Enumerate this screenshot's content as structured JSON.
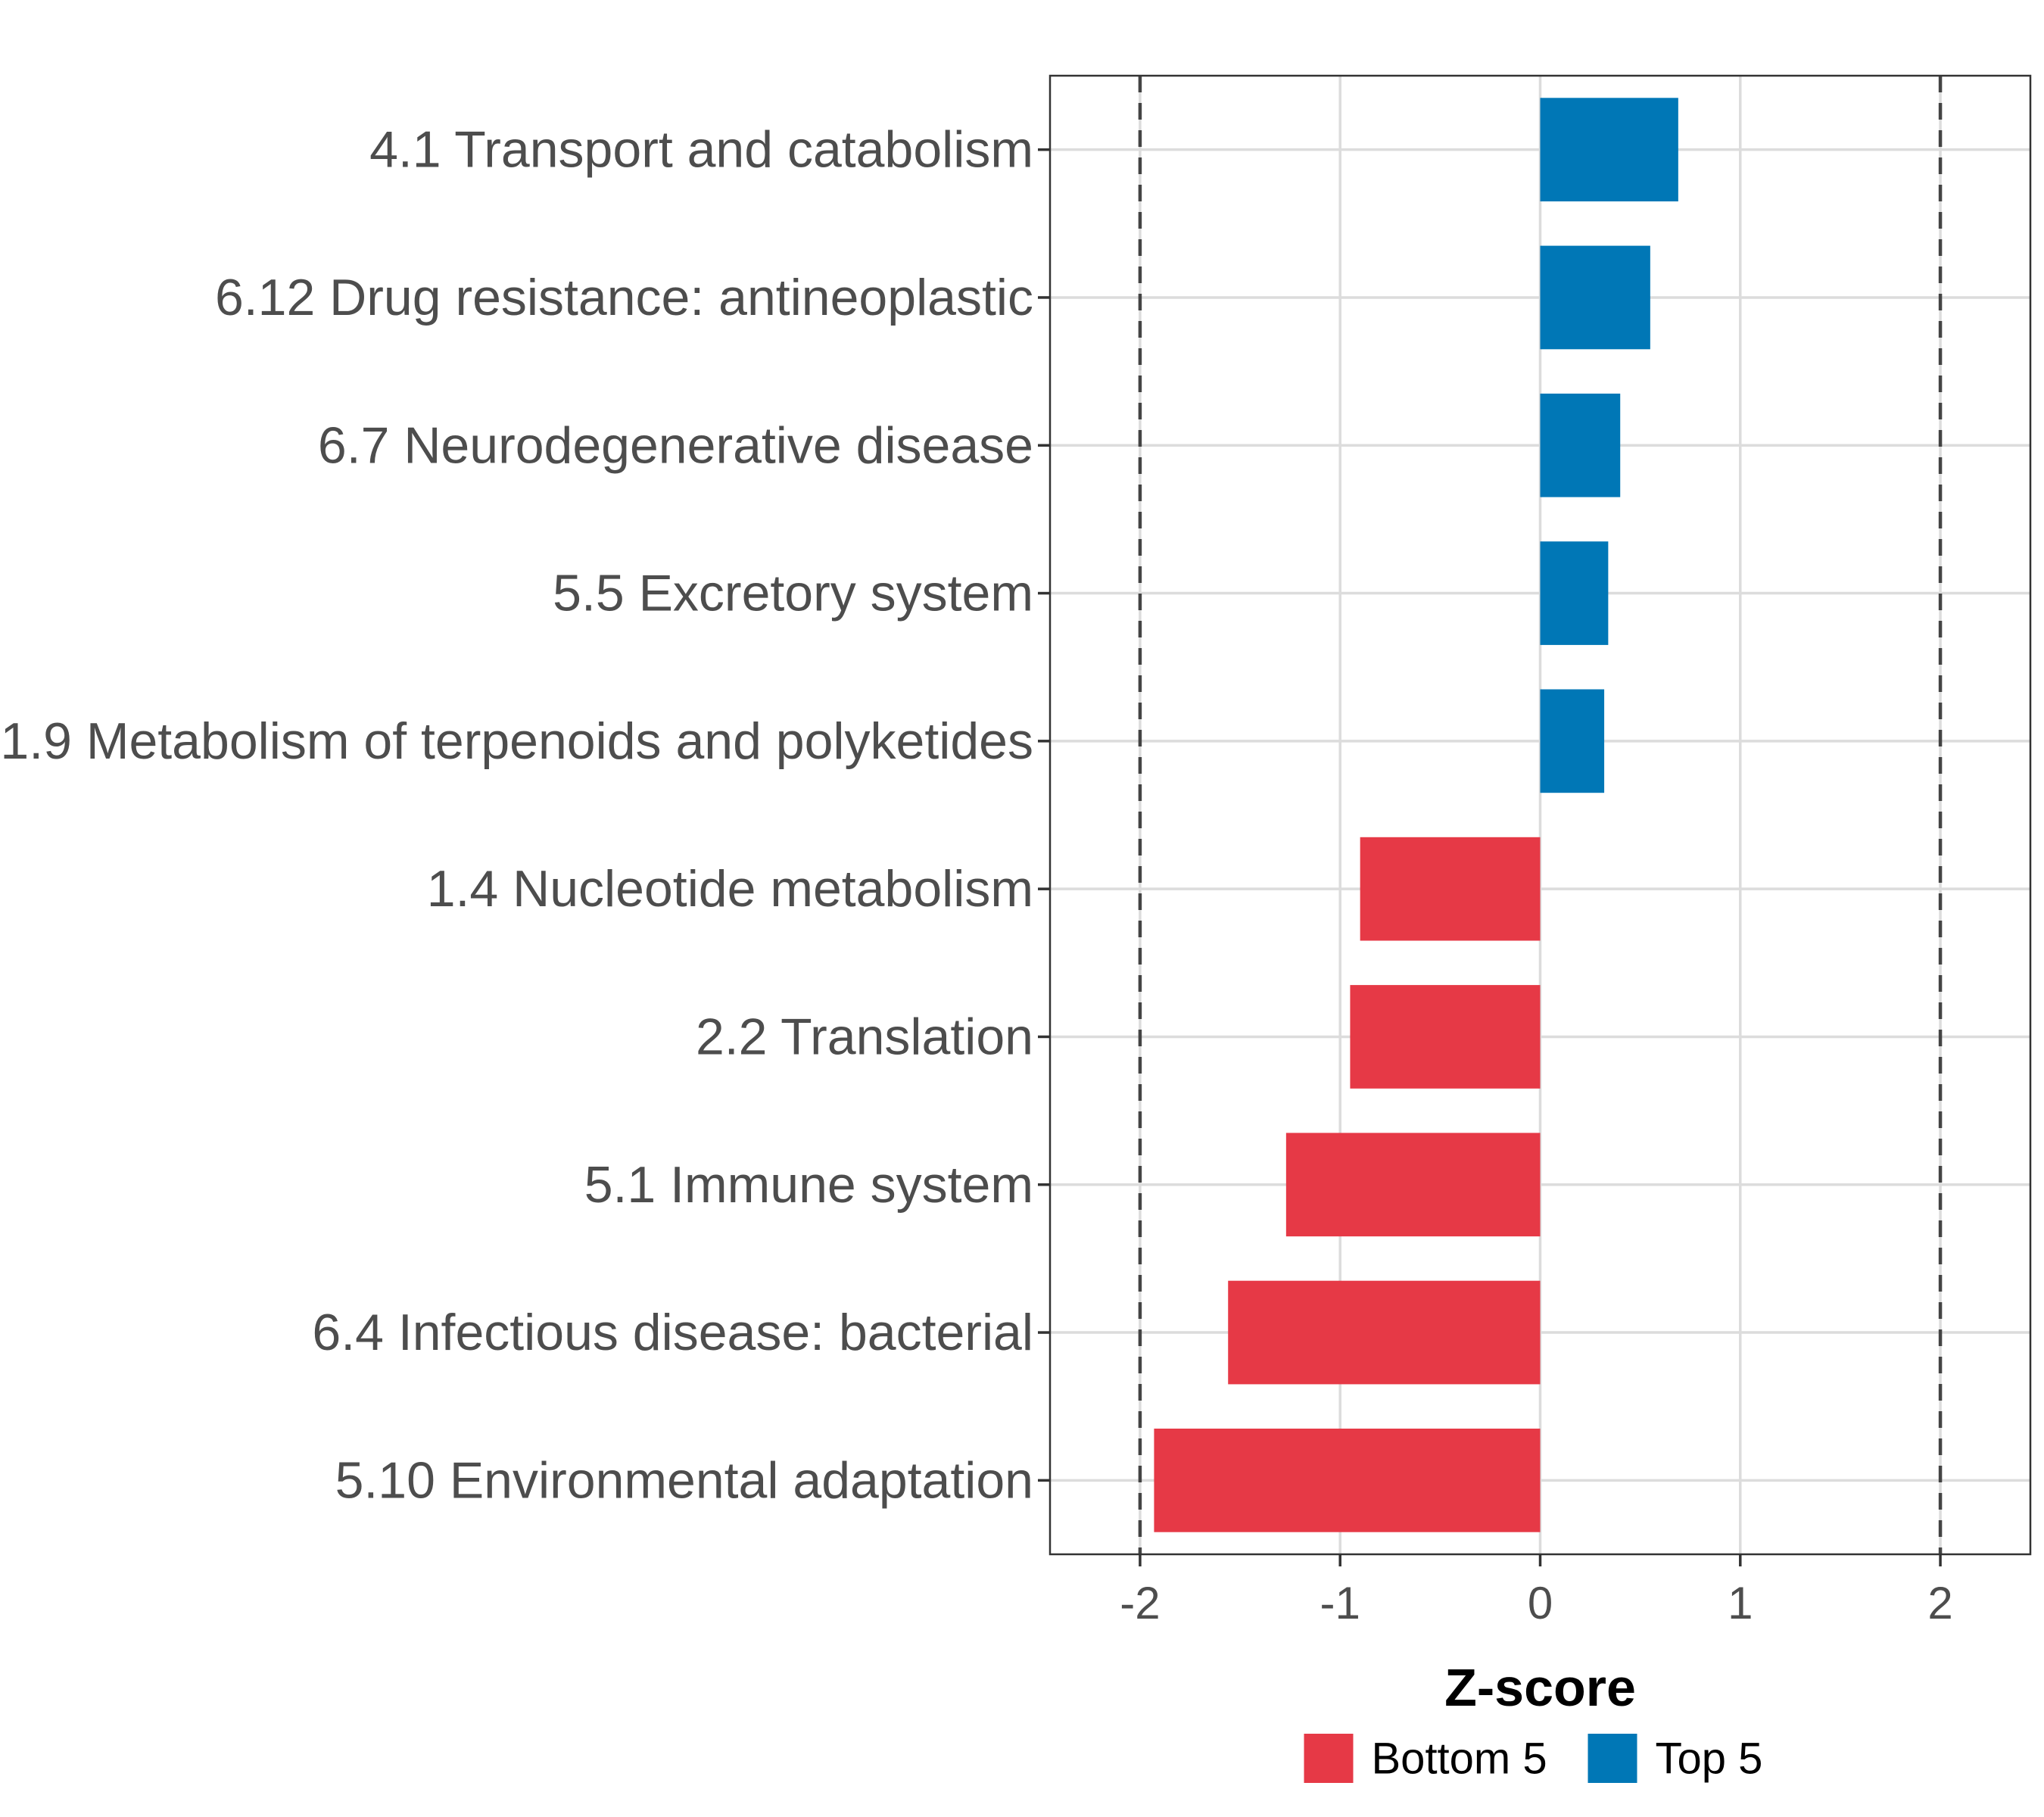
{
  "chart_data": {
    "type": "bar",
    "orientation": "horizontal",
    "title": "",
    "xlabel": "Z-score",
    "ylabel": "",
    "xlim": [
      -2.45,
      2.45
    ],
    "xticks": [
      -2,
      -1,
      0,
      1,
      2
    ],
    "xtick_labels": [
      "-2",
      "-1",
      "0",
      "1",
      "2"
    ],
    "reference_lines": [
      -2,
      2
    ],
    "grid": true,
    "categories": [
      "4.1 Transport and catabolism",
      "6.12 Drug resistance: antineoplastic",
      "6.7 Neurodegenerative disease",
      "5.5 Excretory system",
      "1.9 Metabolism of terpenoids and polyketides",
      "1.4 Nucleotide metabolism",
      "2.2 Translation",
      "5.1 Immune system",
      "6.4 Infectious disease: bacterial",
      "5.10 Environmental adaptation"
    ],
    "values": [
      0.69,
      0.55,
      0.4,
      0.34,
      0.32,
      -0.9,
      -0.95,
      -1.27,
      -1.56,
      -1.93
    ],
    "groups": [
      "Top 5",
      "Top 5",
      "Top 5",
      "Top 5",
      "Top 5",
      "Bottom 5",
      "Bottom 5",
      "Bottom 5",
      "Bottom 5",
      "Bottom 5"
    ],
    "legend": {
      "position": "bottom",
      "entries": [
        {
          "label": "Bottom 5",
          "color": "#e63946"
        },
        {
          "label": "Top 5",
          "color": "#0077b6"
        }
      ]
    }
  }
}
